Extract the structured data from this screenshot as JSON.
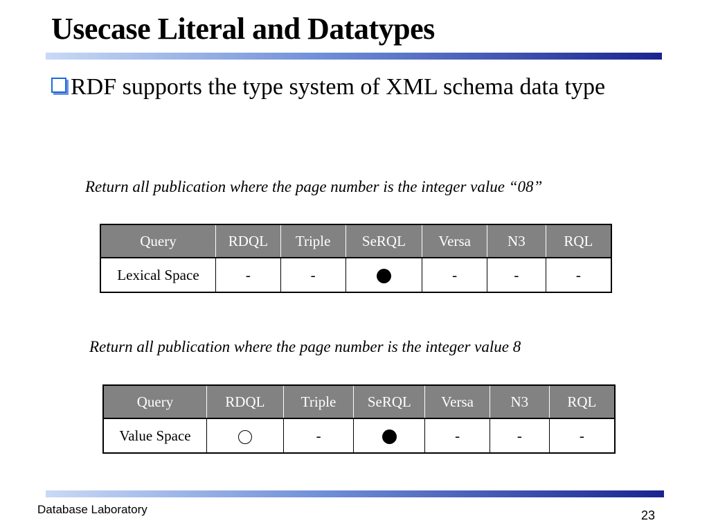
{
  "slide": {
    "title": "Usecase Literal and Datatypes",
    "bullet": {
      "icon": "checkbox-bullet-icon",
      "text": "RDF supports the type system of XML schema data type"
    },
    "accent_colors": {
      "rule_start": "#c9d9f6",
      "rule_end": "#1a2490",
      "header_bg": "#828282",
      "bullet": "#1a6bd6"
    }
  },
  "tables": [
    {
      "caption": "Return all publication where the page number is the integer value “08”",
      "headers": [
        "Query",
        "RDQL",
        "Triple",
        "SeRQL",
        "Versa",
        "N3",
        "RQL"
      ],
      "row": {
        "label": "Lexical Space",
        "cells": [
          {
            "type": "text",
            "value": "-"
          },
          {
            "type": "text",
            "value": "-"
          },
          {
            "type": "filled-circle"
          },
          {
            "type": "text",
            "value": "-"
          },
          {
            "type": "text",
            "value": "-"
          },
          {
            "type": "text",
            "value": "-"
          }
        ]
      }
    },
    {
      "caption": "Return all publication where the page number is the integer value 8",
      "headers": [
        "Query",
        "RDQL",
        "Triple",
        "SeRQL",
        "Versa",
        "N3",
        "RQL"
      ],
      "row": {
        "label": "Value Space",
        "cells": [
          {
            "type": "hollow-circle"
          },
          {
            "type": "text",
            "value": "-"
          },
          {
            "type": "filled-circle"
          },
          {
            "type": "text",
            "value": "-"
          },
          {
            "type": "text",
            "value": "-"
          },
          {
            "type": "text",
            "value": "-"
          }
        ]
      }
    }
  ],
  "footer": {
    "left": "Database Laboratory",
    "page_number": "23"
  }
}
